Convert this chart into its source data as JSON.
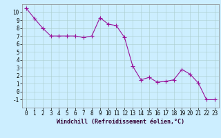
{
  "x": [
    0,
    1,
    2,
    3,
    4,
    5,
    6,
    7,
    8,
    9,
    10,
    11,
    12,
    13,
    14,
    15,
    16,
    17,
    18,
    19,
    20,
    21,
    22,
    23
  ],
  "y": [
    10.5,
    9.2,
    8.0,
    7.0,
    7.0,
    7.0,
    7.0,
    6.8,
    7.0,
    9.3,
    8.5,
    8.3,
    6.8,
    3.2,
    1.5,
    1.8,
    1.2,
    1.3,
    1.5,
    2.8,
    2.2,
    1.1,
    -1.0,
    -1.0
  ],
  "line_color": "#991199",
  "marker": "+",
  "markersize": 4,
  "linewidth": 0.8,
  "background_color": "#cceeff",
  "grid_color": "#aacccc",
  "xlabel": "Windchill (Refroidissement éolien,°C)",
  "xlabel_fontsize": 6,
  "tick_fontsize": 5.5,
  "xlim": [
    -0.5,
    23.5
  ],
  "ylim": [
    -2,
    11
  ],
  "yticks": [
    -1,
    0,
    1,
    2,
    3,
    4,
    5,
    6,
    7,
    8,
    9,
    10
  ],
  "xticks": [
    0,
    1,
    2,
    3,
    4,
    5,
    6,
    7,
    8,
    9,
    10,
    11,
    12,
    13,
    14,
    15,
    16,
    17,
    18,
    19,
    20,
    21,
    22,
    23
  ]
}
